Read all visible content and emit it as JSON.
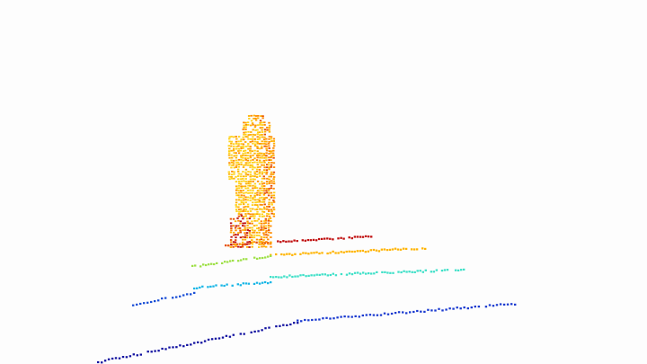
{
  "scene": {
    "type": "lidar-point-cloud",
    "subject": "standing-person",
    "colormap": "jet",
    "background": "#fdfdfd",
    "colors": {
      "near_far_scan_lines": [
        "#1010a0",
        "#1a4fd6",
        "#18b6e6",
        "#3fe0c8",
        "#7fe060",
        "#c8e040",
        "#ffb400",
        "#c01010"
      ],
      "person": [
        "#ffd21a",
        "#ffb000",
        "#ff8c00",
        "#e85000",
        "#c01010"
      ]
    }
  }
}
